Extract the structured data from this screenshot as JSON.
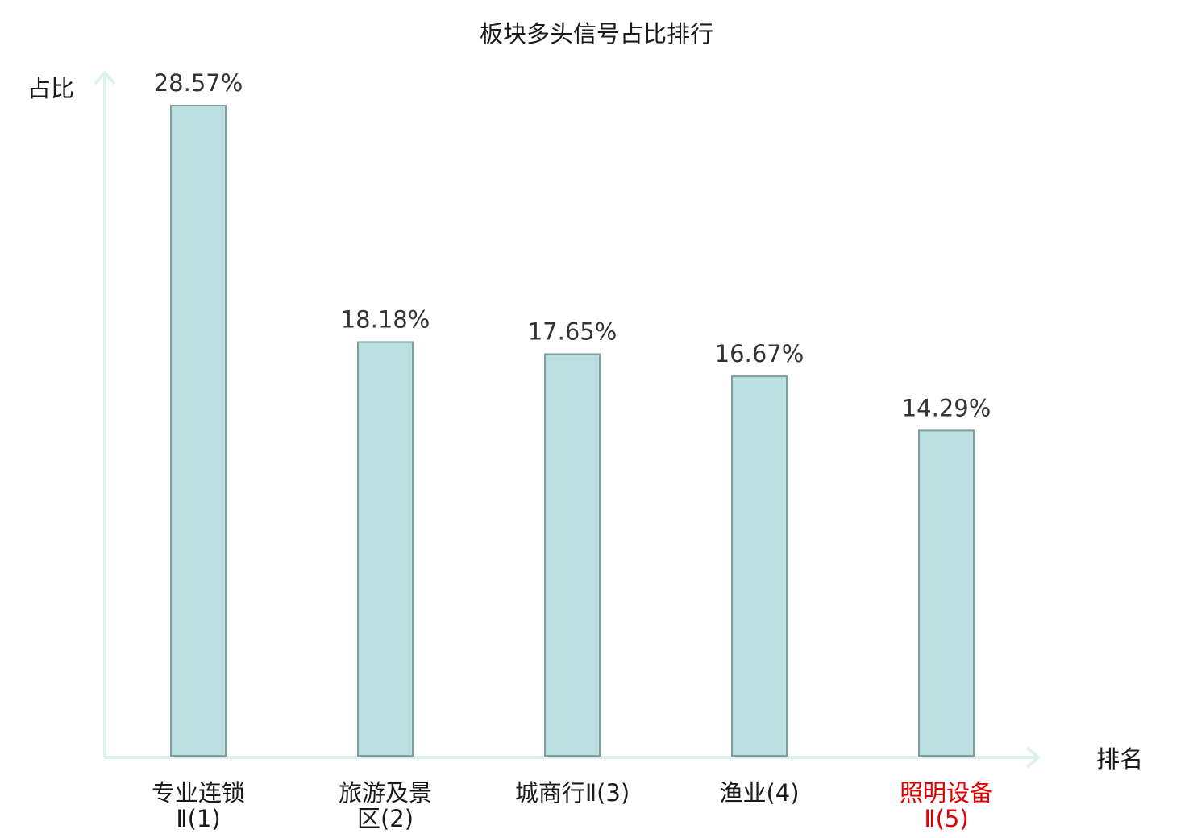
{
  "chart_data": {
    "type": "bar",
    "title": "板块多头信号占比排行",
    "ylabel": "占比",
    "xlabel": "排名",
    "categories": [
      {
        "line1": "专业连锁",
        "line2": "Ⅱ(1)",
        "highlight": false
      },
      {
        "line1": "旅游及景",
        "line2": "区(2)",
        "highlight": false
      },
      {
        "line1": "城商行Ⅱ(3)",
        "line2": "",
        "highlight": false
      },
      {
        "line1": "渔业(4)",
        "line2": "",
        "highlight": false
      },
      {
        "line1": "照明设备",
        "line2": "Ⅱ(5)",
        "highlight": true
      }
    ],
    "values": [
      28.57,
      18.18,
      17.65,
      16.67,
      14.29
    ],
    "value_labels": [
      "28.57%",
      "18.18%",
      "17.65%",
      "16.67%",
      "14.29%"
    ],
    "ylim": [
      0,
      28.57
    ],
    "grid": false,
    "colors": {
      "bar_fill": "#bce0e1",
      "bar_stroke": "#7f9e9f",
      "axis": "#dff1ef",
      "highlight_text": "#e00000",
      "normal_text": "#1a1a1a"
    }
  }
}
